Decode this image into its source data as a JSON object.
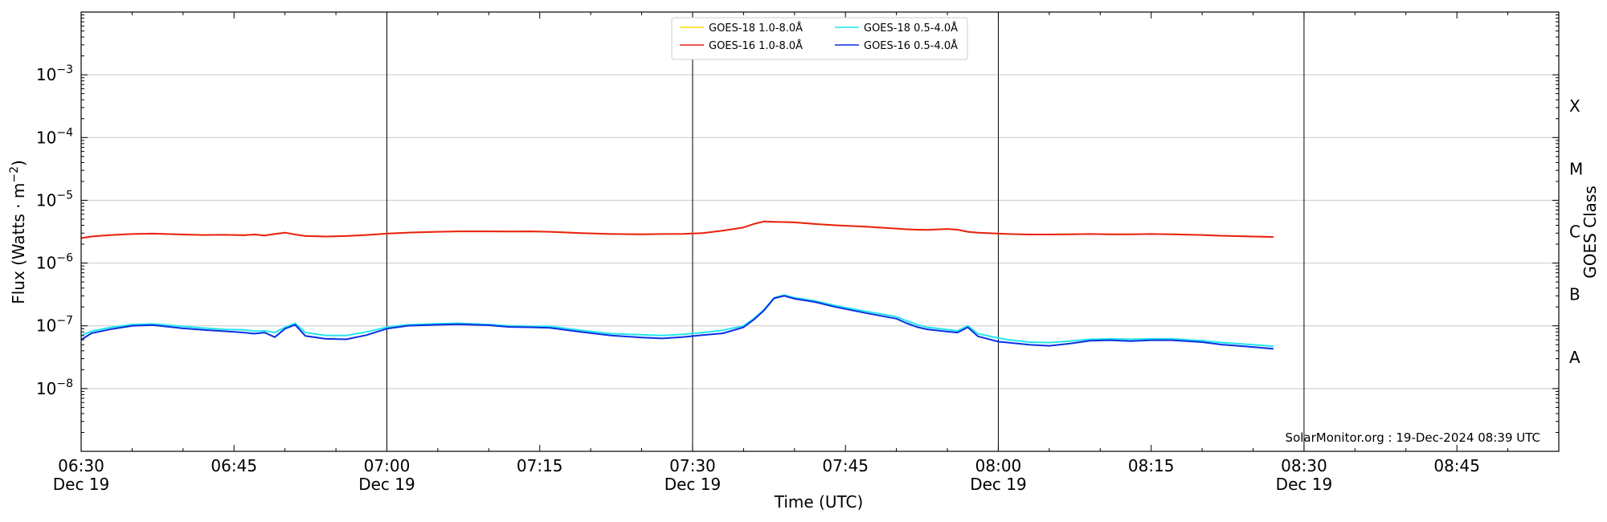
{
  "chart_data": {
    "type": "line",
    "title": "",
    "xlabel": "Time (UTC)",
    "ylabel": "Flux (Watts · m⁻²)",
    "y2label": "GOES Class",
    "yscale": "log",
    "ylim": [
      1e-09,
      0.01
    ],
    "xlim_minutes_since_0630": [
      0,
      145
    ],
    "x_tick_labels": [
      {
        "time": "06:30",
        "date": "Dec 19"
      },
      {
        "time": "06:45",
        "date": ""
      },
      {
        "time": "07:00",
        "date": "Dec 19"
      },
      {
        "time": "07:15",
        "date": ""
      },
      {
        "time": "07:30",
        "date": "Dec 19"
      },
      {
        "time": "07:45",
        "date": ""
      },
      {
        "time": "08:00",
        "date": "Dec 19"
      },
      {
        "time": "08:15",
        "date": ""
      },
      {
        "time": "08:30",
        "date": "Dec 19"
      },
      {
        "time": "08:45",
        "date": ""
      }
    ],
    "y_tick_labels": [
      {
        "base": "10",
        "exp": "−3",
        "value": 0.001
      },
      {
        "base": "10",
        "exp": "−4",
        "value": 0.0001
      },
      {
        "base": "10",
        "exp": "−5",
        "value": 1e-05
      },
      {
        "base": "10",
        "exp": "−6",
        "value": 1e-06
      },
      {
        "base": "10",
        "exp": "−7",
        "value": 1e-07
      },
      {
        "base": "10",
        "exp": "−8",
        "value": 1e-08
      }
    ],
    "goes_classes": [
      {
        "label": "X",
        "value": 0.000316
      },
      {
        "label": "M",
        "value": 3.16e-05
      },
      {
        "label": "C",
        "value": 3.16e-06
      },
      {
        "label": "B",
        "value": 3.16e-07
      },
      {
        "label": "A",
        "value": 3.16e-08
      }
    ],
    "grid": true,
    "legend_position": "top-center",
    "watermark": "SolarMonitor.org : 19-Dec-2024 08:39 UTC",
    "x_time": [
      "06:30",
      "06:31",
      "06:33",
      "06:35",
      "06:37",
      "06:40",
      "06:42",
      "06:44",
      "06:46",
      "06:47",
      "06:48",
      "06:49",
      "06:50",
      "06:51",
      "06:52",
      "06:54",
      "06:56",
      "06:58",
      "07:00",
      "07:02",
      "07:05",
      "07:07",
      "07:10",
      "07:12",
      "07:14",
      "07:16",
      "07:19",
      "07:22",
      "07:25",
      "07:27",
      "07:29",
      "07:31",
      "07:33",
      "07:35",
      "07:36",
      "07:37",
      "07:38",
      "07:39",
      "07:40",
      "07:42",
      "07:44",
      "07:47",
      "07:50",
      "07:51",
      "07:52",
      "07:53",
      "07:55",
      "07:56",
      "07:57",
      "07:58",
      "08:00",
      "08:01",
      "08:03",
      "08:05",
      "08:07",
      "08:09",
      "08:11",
      "08:13",
      "08:15",
      "08:17",
      "08:20",
      "08:22",
      "08:25",
      "08:27"
    ],
    "series": [
      {
        "name": "GOES-18 1.0-8.0Å",
        "color": "#ffd700",
        "values": [
          2.5e-06,
          2.65e-06,
          2.8e-06,
          2.9e-06,
          2.95e-06,
          2.85e-06,
          2.8e-06,
          2.82e-06,
          2.78e-06,
          2.85e-06,
          2.75e-06,
          2.9e-06,
          3.05e-06,
          2.85e-06,
          2.7e-06,
          2.65e-06,
          2.7e-06,
          2.8e-06,
          2.95e-06,
          3.05e-06,
          3.15e-06,
          3.2e-06,
          3.2e-06,
          3.18e-06,
          3.2e-06,
          3.15e-06,
          3e-06,
          2.9e-06,
          2.88e-06,
          2.9e-06,
          2.92e-06,
          3e-06,
          3.3e-06,
          3.7e-06,
          4.2e-06,
          4.6e-06,
          4.55e-06,
          4.5e-06,
          4.45e-06,
          4.2e-06,
          4e-06,
          3.8e-06,
          3.55e-06,
          3.45e-06,
          3.4e-06,
          3.38e-06,
          3.5e-06,
          3.4e-06,
          3.15e-06,
          3.05e-06,
          2.95e-06,
          2.9e-06,
          2.85e-06,
          2.85e-06,
          2.88e-06,
          2.9e-06,
          2.88e-06,
          2.88e-06,
          2.9e-06,
          2.88e-06,
          2.8e-06,
          2.72e-06,
          2.65e-06,
          2.6e-06
        ]
      },
      {
        "name": "GOES-16 1.0-8.0Å",
        "color": "#e8211a",
        "values": [
          2.5e-06,
          2.65e-06,
          2.8e-06,
          2.9e-06,
          2.95e-06,
          2.85e-06,
          2.8e-06,
          2.82e-06,
          2.78e-06,
          2.85e-06,
          2.75e-06,
          2.9e-06,
          3.05e-06,
          2.85e-06,
          2.7e-06,
          2.65e-06,
          2.7e-06,
          2.8e-06,
          2.95e-06,
          3.05e-06,
          3.15e-06,
          3.2e-06,
          3.2e-06,
          3.18e-06,
          3.2e-06,
          3.15e-06,
          3e-06,
          2.9e-06,
          2.88e-06,
          2.9e-06,
          2.92e-06,
          3e-06,
          3.3e-06,
          3.7e-06,
          4.2e-06,
          4.6e-06,
          4.55e-06,
          4.5e-06,
          4.45e-06,
          4.2e-06,
          4e-06,
          3.8e-06,
          3.55e-06,
          3.45e-06,
          3.4e-06,
          3.38e-06,
          3.5e-06,
          3.4e-06,
          3.15e-06,
          3.05e-06,
          2.95e-06,
          2.9e-06,
          2.85e-06,
          2.85e-06,
          2.88e-06,
          2.9e-06,
          2.88e-06,
          2.88e-06,
          2.9e-06,
          2.88e-06,
          2.8e-06,
          2.72e-06,
          2.65e-06,
          2.6e-06
        ]
      },
      {
        "name": "GOES-18 0.5-4.0Å",
        "color": "#22e6f0",
        "values": [
          7e-08,
          8.2e-08,
          9.5e-08,
          1.05e-07,
          1.07e-07,
          9.8e-08,
          9.2e-08,
          8.8e-08,
          8.6e-08,
          8.2e-08,
          8.3e-08,
          7.8e-08,
          9.5e-08,
          1.1e-07,
          7.8e-08,
          7e-08,
          7e-08,
          8e-08,
          9.5e-08,
          1.04e-07,
          1.08e-07,
          1.1e-07,
          1.05e-07,
          1e-07,
          9.8e-08,
          9.8e-08,
          8.5e-08,
          7.5e-08,
          7.2e-08,
          7e-08,
          7.3e-08,
          7.8e-08,
          8.5e-08,
          1e-07,
          1.3e-07,
          1.8e-07,
          2.8e-07,
          3.1e-07,
          2.8e-07,
          2.5e-07,
          2.1e-07,
          1.7e-07,
          1.4e-07,
          1.2e-07,
          1.05e-07,
          9.5e-08,
          8.7e-08,
          8.3e-08,
          1e-07,
          7.5e-08,
          6.4e-08,
          6e-08,
          5.5e-08,
          5.4e-08,
          5.7e-08,
          6.1e-08,
          6.2e-08,
          6.1e-08,
          6.2e-08,
          6.2e-08,
          5.8e-08,
          5.4e-08,
          5e-08,
          4.7e-08
        ]
      },
      {
        "name": "GOES-16 0.5-4.0Å",
        "color": "#0a2fe0",
        "values": [
          6e-08,
          7.6e-08,
          8.9e-08,
          1e-07,
          1.03e-07,
          9.1e-08,
          8.6e-08,
          8.2e-08,
          7.8e-08,
          7.5e-08,
          7.8e-08,
          6.6e-08,
          9e-08,
          1.04e-07,
          6.9e-08,
          6.2e-08,
          6.1e-08,
          7.1e-08,
          9e-08,
          1e-07,
          1.04e-07,
          1.06e-07,
          1.02e-07,
          9.6e-08,
          9.5e-08,
          9.3e-08,
          8e-08,
          7e-08,
          6.5e-08,
          6.3e-08,
          6.6e-08,
          7.1e-08,
          7.6e-08,
          9.5e-08,
          1.25e-07,
          1.75e-07,
          2.75e-07,
          3e-07,
          2.7e-07,
          2.4e-07,
          2e-07,
          1.6e-07,
          1.3e-07,
          1.1e-07,
          9.6e-08,
          8.8e-08,
          8.1e-08,
          7.8e-08,
          9.5e-08,
          6.8e-08,
          5.6e-08,
          5.4e-08,
          5e-08,
          4.8e-08,
          5.2e-08,
          5.8e-08,
          5.9e-08,
          5.7e-08,
          5.9e-08,
          5.9e-08,
          5.5e-08,
          5e-08,
          4.6e-08,
          4.3e-08
        ]
      }
    ]
  }
}
